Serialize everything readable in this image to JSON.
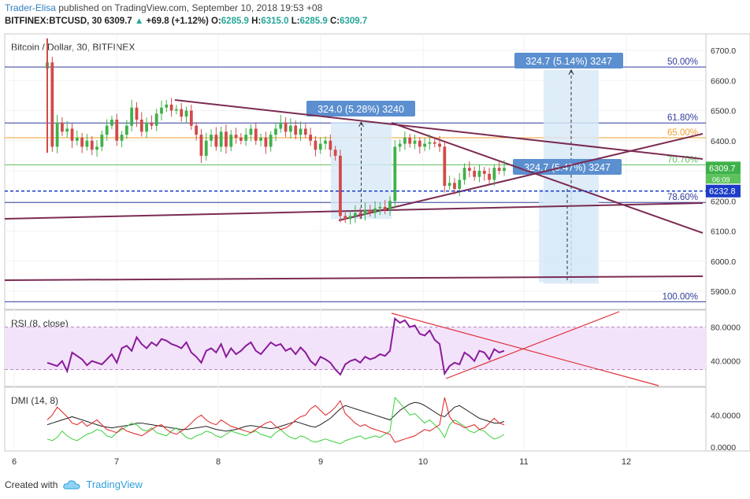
{
  "header": {
    "author": "Trader-Elisa",
    "published": " published on TradingView.com, September 10, 2018 19:53 +08",
    "symbol": "BITFINEX:BTCUSD, 30",
    "price": "6309.7",
    "change": "+69.8 (+1.12%)",
    "o_label": "O:",
    "o_value": "6285.9",
    "h_label": "H:",
    "h_value": "6315.0",
    "l_label": "L:",
    "l_value": "6285.9",
    "c_label": "C:",
    "c_value": "6309.7"
  },
  "footer": {
    "created_with": "Created with",
    "brand": "TradingView"
  },
  "colors": {
    "up": "#3fb14a",
    "down": "#d24a4a",
    "trend": "#7b2b52",
    "fib": "#2f3b9a",
    "fib65": "#f0a030",
    "fib70": "#5bbf5b",
    "rsi": "#8a1b9a",
    "rsi_band": "#f3e3fa",
    "rsi_trend": "#e0303a",
    "dmi_plus": "#3bd03b",
    "dmi_minus": "#e02020",
    "adx": "#222222",
    "range_fill": "#d7e8f8",
    "range_label": "#5b8fcf",
    "current_price_tag": "#1b3cc8"
  },
  "chart_data": {
    "type": "candlestick",
    "title": "Bitcoin / Dollar, 30, BITFINEX",
    "x_ticks": [
      "6",
      "7",
      "8",
      "9",
      "10",
      "11",
      "12"
    ],
    "y_ticks": [
      "5900.0",
      "6000.0",
      "6100.0",
      "6200.0",
      "6300.0",
      "6400.0",
      "6500.0",
      "6600.0",
      "6700.0"
    ],
    "ylim": [
      5840,
      6755
    ],
    "price_tags": {
      "last": "6309.7",
      "countdown": "06:09",
      "line": "6232.8"
    },
    "fib_levels": [
      {
        "label": "50.00%",
        "price": 6645
      },
      {
        "label": "61.80%",
        "price": 6459
      },
      {
        "label": "65.00%",
        "price": 6410
      },
      {
        "label": "70.70%",
        "price": 6320
      },
      {
        "label": "78.60%",
        "price": 6195
      },
      {
        "label": "100.00%",
        "price": 5865
      }
    ],
    "range_labels": [
      "324.7 (5.14%) 3247",
      "324.0 (5.28%) 3240",
      "324.7 (5.47%) 3247"
    ],
    "closes": [
      6660,
      6380,
      6460,
      6430,
      6440,
      6400,
      6410,
      6380,
      6400,
      6370,
      6380,
      6420,
      6450,
      6470,
      6400,
      6420,
      6450,
      6510,
      6470,
      6430,
      6460,
      6450,
      6490,
      6510,
      6520,
      6500,
      6505,
      6480,
      6500,
      6450,
      6420,
      6350,
      6400,
      6420,
      6380,
      6430,
      6380,
      6420,
      6410,
      6400,
      6420,
      6440,
      6400,
      6410,
      6380,
      6420,
      6440,
      6460,
      6430,
      6450,
      6420,
      6440,
      6420,
      6400,
      6370,
      6390,
      6400,
      6370,
      6350,
      6150,
      6140,
      6150,
      6160,
      6155,
      6170,
      6160,
      6175,
      6180,
      6170,
      6200,
      6380,
      6390,
      6410,
      6390,
      6400,
      6380,
      6390,
      6395,
      6390,
      6380,
      6250,
      6260,
      6240,
      6270,
      6310,
      6300,
      6280,
      6300,
      6290,
      6270,
      6310,
      6300,
      6309.7
    ],
    "rsi": {
      "label": "RSI (8, close)",
      "ticks": [
        "80.0000",
        "40.0000"
      ],
      "ylim": [
        10,
        100
      ],
      "values": [
        38,
        36,
        34,
        40,
        28,
        50,
        46,
        42,
        35,
        40,
        38,
        36,
        42,
        48,
        38,
        55,
        58,
        52,
        68,
        60,
        55,
        62,
        58,
        66,
        64,
        60,
        58,
        55,
        62,
        50,
        45,
        38,
        52,
        55,
        50,
        60,
        45,
        55,
        48,
        52,
        58,
        62,
        52,
        48,
        55,
        62,
        58,
        60,
        52,
        55,
        48,
        56,
        50,
        40,
        35,
        45,
        42,
        38,
        30,
        24,
        36,
        40,
        42,
        38,
        45,
        42,
        44,
        48,
        46,
        52,
        90,
        85,
        88,
        80,
        82,
        72,
        70,
        76,
        65,
        60,
        25,
        34,
        38,
        36,
        50,
        46,
        40,
        52,
        50,
        42,
        54,
        50,
        52
      ],
      "trendlines": [
        {
          "from": [
            0.7,
            86
          ],
          "to": [
            0.85,
            40
          ]
        },
        {
          "from": [
            0.7,
            90
          ],
          "to": [
            0.82,
            28
          ]
        }
      ]
    },
    "dmi": {
      "label": "DMI (14, 8)",
      "ticks": [
        "40.0000",
        "0.0000"
      ],
      "ylim": [
        -5,
        75
      ],
      "adx": [
        28,
        30,
        32,
        34,
        36,
        38,
        36,
        34,
        32,
        30,
        28,
        26,
        25,
        24,
        25,
        26,
        27,
        28,
        30,
        30,
        29,
        28,
        27,
        26,
        25,
        24,
        23,
        22,
        22,
        23,
        24,
        25,
        26,
        24,
        22,
        21,
        20,
        21,
        22,
        24,
        26,
        27,
        26,
        25,
        24,
        23,
        24,
        26,
        28,
        30,
        32,
        30,
        28,
        26,
        25,
        28,
        32,
        36,
        42,
        48,
        52,
        50,
        48,
        46,
        44,
        42,
        40,
        38,
        36,
        34,
        40,
        46,
        50,
        54,
        56,
        55,
        52,
        48,
        44,
        40,
        38,
        44,
        50,
        52,
        48,
        44,
        40,
        36,
        34,
        32,
        30,
        30,
        32
      ],
      "plus": [
        10,
        8,
        12,
        20,
        14,
        10,
        8,
        12,
        16,
        18,
        22,
        20,
        14,
        12,
        18,
        22,
        26,
        30,
        28,
        22,
        20,
        24,
        18,
        16,
        14,
        20,
        24,
        18,
        12,
        10,
        14,
        16,
        20,
        18,
        14,
        12,
        16,
        20,
        18,
        16,
        14,
        18,
        20,
        16,
        14,
        12,
        18,
        22,
        16,
        12,
        10,
        14,
        12,
        8,
        6,
        8,
        10,
        8,
        6,
        4,
        8,
        10,
        12,
        14,
        10,
        12,
        14,
        12,
        16,
        20,
        62,
        55,
        48,
        40,
        42,
        36,
        30,
        34,
        28,
        22,
        12,
        28,
        34,
        30,
        26,
        20,
        18,
        22,
        20,
        14,
        10,
        12,
        16
      ],
      "minus": [
        34,
        40,
        50,
        44,
        38,
        30,
        28,
        32,
        26,
        30,
        34,
        28,
        22,
        20,
        18,
        24,
        20,
        18,
        16,
        14,
        18,
        22,
        26,
        28,
        22,
        18,
        16,
        20,
        24,
        30,
        36,
        40,
        34,
        30,
        28,
        34,
        30,
        26,
        24,
        22,
        20,
        18,
        22,
        26,
        30,
        32,
        26,
        22,
        24,
        28,
        34,
        38,
        40,
        48,
        52,
        46,
        40,
        44,
        50,
        58,
        42,
        36,
        30,
        26,
        28,
        24,
        22,
        20,
        18,
        16,
        6,
        8,
        10,
        12,
        14,
        18,
        22,
        20,
        24,
        28,
        62,
        38,
        30,
        28,
        24,
        26,
        28,
        22,
        24,
        30,
        36,
        30,
        28
      ]
    }
  }
}
